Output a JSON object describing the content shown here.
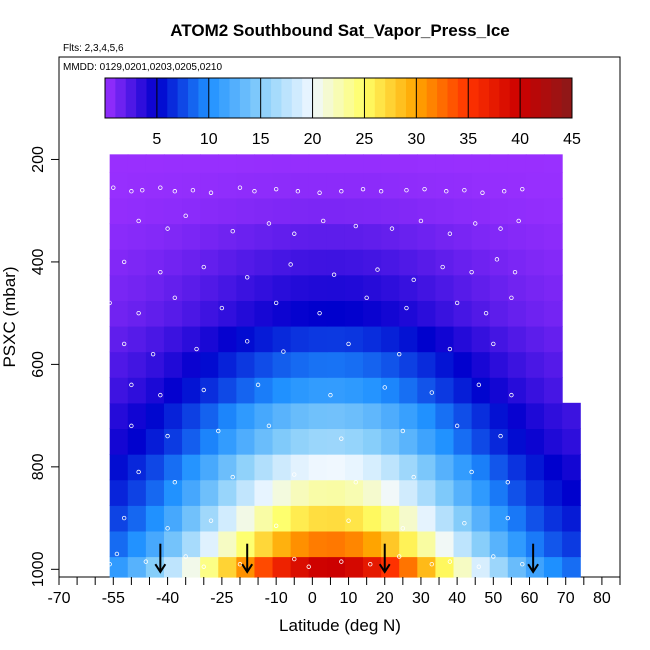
{
  "chart_data": {
    "type": "heatmap",
    "title": "ATOM2 Southbound Sat_Vapor_Press_Ice",
    "flights_note": "Flts: 2,3,4,5,6",
    "dates_note": "MMDD: 0129,0201,0203,0205,0210",
    "xlabel": "Latitude (deg N)",
    "ylabel": "PSXC (mbar)",
    "xlim": [
      -70,
      85
    ],
    "ylim": [
      1015,
      0
    ],
    "x_ticks": [
      -70,
      -55,
      -40,
      -25,
      -10,
      0,
      10,
      20,
      30,
      40,
      50,
      60,
      70,
      80
    ],
    "x_tick_labels": [
      "-70",
      "-55",
      "-40",
      "-25",
      "-10",
      "0",
      "10",
      "20",
      "30",
      "40",
      "50",
      "60",
      "70",
      "80"
    ],
    "x_minor_ticks": [
      -65,
      -60,
      -50,
      -45,
      -35,
      -30,
      -20,
      -15,
      -5,
      5,
      15,
      25,
      35,
      45,
      55,
      65,
      75,
      85
    ],
    "y_ticks": [
      200,
      400,
      600,
      800,
      1000
    ],
    "y_tick_labels": [
      "200",
      "400",
      "600",
      "800",
      "1000"
    ],
    "colorbar": {
      "range": [
        0,
        45
      ],
      "ticks": [
        5,
        10,
        15,
        20,
        25,
        30,
        35,
        40,
        45
      ],
      "tick_labels": [
        "5",
        "10",
        "15",
        "20",
        "25",
        "30",
        "35",
        "40",
        "45"
      ],
      "colors": [
        "#9b30ff",
        "#0000cd",
        "#1e90ff",
        "#87cefa",
        "#f0f8ff",
        "#ffff66",
        "#ffa500",
        "#ff3300",
        "#cc0000",
        "#8b1a1a"
      ]
    },
    "flight_start_latitudes": [
      -42,
      -18,
      20,
      61
    ],
    "pressure_levels": [
      1000,
      950,
      900,
      850,
      800,
      750,
      700,
      650,
      600,
      550,
      500,
      450,
      400,
      350,
      300,
      250,
      200
    ],
    "level_peak_values": [
      40,
      32,
      27,
      23,
      20,
      16,
      14,
      11,
      9,
      7,
      5,
      4,
      3,
      2,
      1,
      0.5,
      0.2
    ],
    "level_lat_range": [
      [
        -56,
        71
      ],
      [
        -56,
        71
      ],
      [
        -56,
        71
      ],
      [
        -56,
        71
      ],
      [
        -56,
        70
      ],
      [
        -56,
        70
      ],
      [
        -56,
        70
      ],
      [
        -56,
        68
      ],
      [
        -56,
        68
      ],
      [
        -56,
        66
      ],
      [
        -56,
        66
      ],
      [
        -56,
        66
      ],
      [
        -56,
        66
      ],
      [
        -56,
        66
      ],
      [
        -56,
        66
      ],
      [
        -56,
        66
      ],
      [
        -56,
        66
      ]
    ],
    "data_top_pressure": 190,
    "cloud_points": [
      [
        -55,
        255
      ],
      [
        -50,
        262
      ],
      [
        -47,
        260
      ],
      [
        -42,
        255
      ],
      [
        -38,
        262
      ],
      [
        -33,
        260
      ],
      [
        -28,
        265
      ],
      [
        -20,
        255
      ],
      [
        -16,
        262
      ],
      [
        -10,
        258
      ],
      [
        -4,
        262
      ],
      [
        2,
        265
      ],
      [
        8,
        262
      ],
      [
        14,
        258
      ],
      [
        19,
        262
      ],
      [
        26,
        260
      ],
      [
        31,
        258
      ],
      [
        37,
        262
      ],
      [
        42,
        260
      ],
      [
        47,
        265
      ],
      [
        53,
        262
      ],
      [
        58,
        258
      ],
      [
        -48,
        320
      ],
      [
        -40,
        335
      ],
      [
        -35,
        310
      ],
      [
        -22,
        340
      ],
      [
        -12,
        325
      ],
      [
        -5,
        345
      ],
      [
        3,
        320
      ],
      [
        12,
        330
      ],
      [
        22,
        335
      ],
      [
        30,
        320
      ],
      [
        38,
        345
      ],
      [
        45,
        325
      ],
      [
        52,
        335
      ],
      [
        57,
        320
      ],
      [
        -52,
        400
      ],
      [
        -42,
        420
      ],
      [
        -30,
        410
      ],
      [
        -18,
        430
      ],
      [
        -6,
        405
      ],
      [
        6,
        425
      ],
      [
        18,
        415
      ],
      [
        28,
        435
      ],
      [
        36,
        410
      ],
      [
        44,
        420
      ],
      [
        51,
        395
      ],
      [
        56,
        420
      ],
      [
        -56,
        480
      ],
      [
        -48,
        500
      ],
      [
        -38,
        470
      ],
      [
        -25,
        490
      ],
      [
        -10,
        480
      ],
      [
        2,
        500
      ],
      [
        15,
        470
      ],
      [
        26,
        490
      ],
      [
        40,
        480
      ],
      [
        48,
        500
      ],
      [
        55,
        470
      ],
      [
        -52,
        560
      ],
      [
        -44,
        580
      ],
      [
        -32,
        570
      ],
      [
        -18,
        555
      ],
      [
        -8,
        575
      ],
      [
        10,
        560
      ],
      [
        24,
        580
      ],
      [
        38,
        570
      ],
      [
        50,
        560
      ],
      [
        -50,
        640
      ],
      [
        -42,
        660
      ],
      [
        -30,
        650
      ],
      [
        -15,
        640
      ],
      [
        5,
        660
      ],
      [
        20,
        645
      ],
      [
        33,
        655
      ],
      [
        46,
        640
      ],
      [
        55,
        660
      ],
      [
        -50,
        720
      ],
      [
        -40,
        740
      ],
      [
        -26,
        730
      ],
      [
        -12,
        720
      ],
      [
        8,
        745
      ],
      [
        25,
        730
      ],
      [
        40,
        720
      ],
      [
        52,
        740
      ],
      [
        -48,
        810
      ],
      [
        -38,
        830
      ],
      [
        -22,
        820
      ],
      [
        -5,
        815
      ],
      [
        12,
        830
      ],
      [
        28,
        820
      ],
      [
        44,
        810
      ],
      [
        54,
        830
      ],
      [
        -52,
        900
      ],
      [
        -40,
        920
      ],
      [
        -28,
        905
      ],
      [
        -10,
        915
      ],
      [
        10,
        905
      ],
      [
        25,
        920
      ],
      [
        42,
        910
      ],
      [
        54,
        900
      ],
      [
        -54,
        970
      ],
      [
        -46,
        985
      ],
      [
        -35,
        975
      ],
      [
        -20,
        990
      ],
      [
        -5,
        980
      ],
      [
        8,
        985
      ],
      [
        24,
        975
      ],
      [
        38,
        985
      ],
      [
        50,
        975
      ],
      [
        58,
        990
      ],
      [
        -56,
        990
      ],
      [
        -1,
        995
      ],
      [
        33,
        990
      ],
      [
        46,
        995
      ],
      [
        -30,
        995
      ],
      [
        16,
        990
      ]
    ]
  }
}
